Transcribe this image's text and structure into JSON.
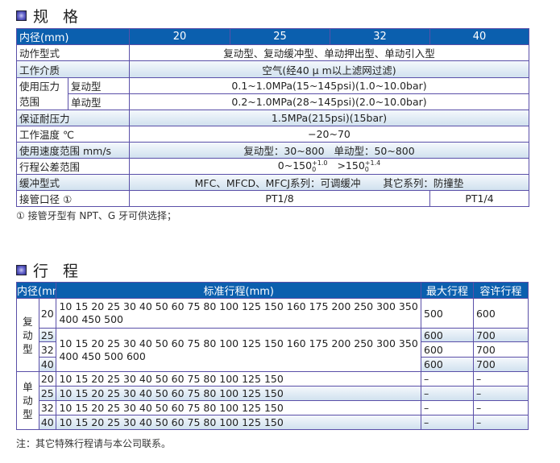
{
  "spec": {
    "title": "规 格",
    "header": [
      "内径(mm)",
      "20",
      "25",
      "32",
      "40"
    ],
    "action_label": "动作型式",
    "action_value": "复动型、复动缓冲型、单动押出型、单动引入型",
    "medium_label": "工作介质",
    "medium_value": "空气(经40 μ m以上滤网过滤)",
    "pressure_label": "使用压力范围",
    "double_label": "复动型",
    "double_value": "0.1~1.0MPa(15~145psi)(1.0~10.0bar)",
    "single_label": "单动型",
    "single_value": "0.2~1.0MPa(28~145psi)(2.0~10.0bar)",
    "proof_label": "保证耐压力",
    "proof_value": "1.5MPa(215psi)(15bar)",
    "temp_label": "工作温度 ℃",
    "temp_value": "−20~70",
    "speed_label": "使用速度范围 mm/s",
    "speed_value": "复动型：30~800   单动型：50~800",
    "tol_label": "行程公差范围",
    "tol_a": "0~150",
    "tol_a_up": "+1.0",
    "tol_a_dn": "0",
    "tol_b": ">150",
    "tol_b_up": "+1.4",
    "tol_b_dn": "0",
    "cushion_label": "缓冲型式",
    "cushion_a": "MFC、MFCD、MFCJ系列：可调缓冲",
    "cushion_b": "其它系列：防撞垫",
    "port_label": "接管口径 ①",
    "port_a": "PT1/8",
    "port_b": "PT1/4",
    "footnote": "① 接管牙型有 NPT、G 牙可供选择；"
  },
  "stroke": {
    "title": "行 程",
    "header": [
      "内径(mm)",
      "标准行程(mm)",
      "最大行程",
      "容许行程"
    ],
    "double_label": "复动型",
    "single_label": "单动型",
    "std_a": "10 15 20 25 30 40 50 60 75 80 100 125 150 160 175 200 250 300 350 400 450 500",
    "std_b": "10 15 20 25 30 40 50 60 75 80 100 125 150 160 175 200 250 300 350 400 450 500 600",
    "std_c": "10 15 20 25 30 40 50 60 75 80 100 125 150",
    "rows": [
      {
        "bore": "20",
        "max": "500",
        "allow": "600"
      },
      {
        "bore": "25",
        "max": "600",
        "allow": "700"
      },
      {
        "bore": "32",
        "max": "600",
        "allow": "700"
      },
      {
        "bore": "40",
        "max": "600",
        "allow": "700"
      },
      {
        "bore": "20",
        "max": "–",
        "allow": "–"
      },
      {
        "bore": "25",
        "max": "–",
        "allow": "–"
      },
      {
        "bore": "32",
        "max": "–",
        "allow": "–"
      },
      {
        "bore": "40",
        "max": "–",
        "allow": "–"
      }
    ],
    "note": "注：其它特殊行程请与本公司联系。"
  }
}
